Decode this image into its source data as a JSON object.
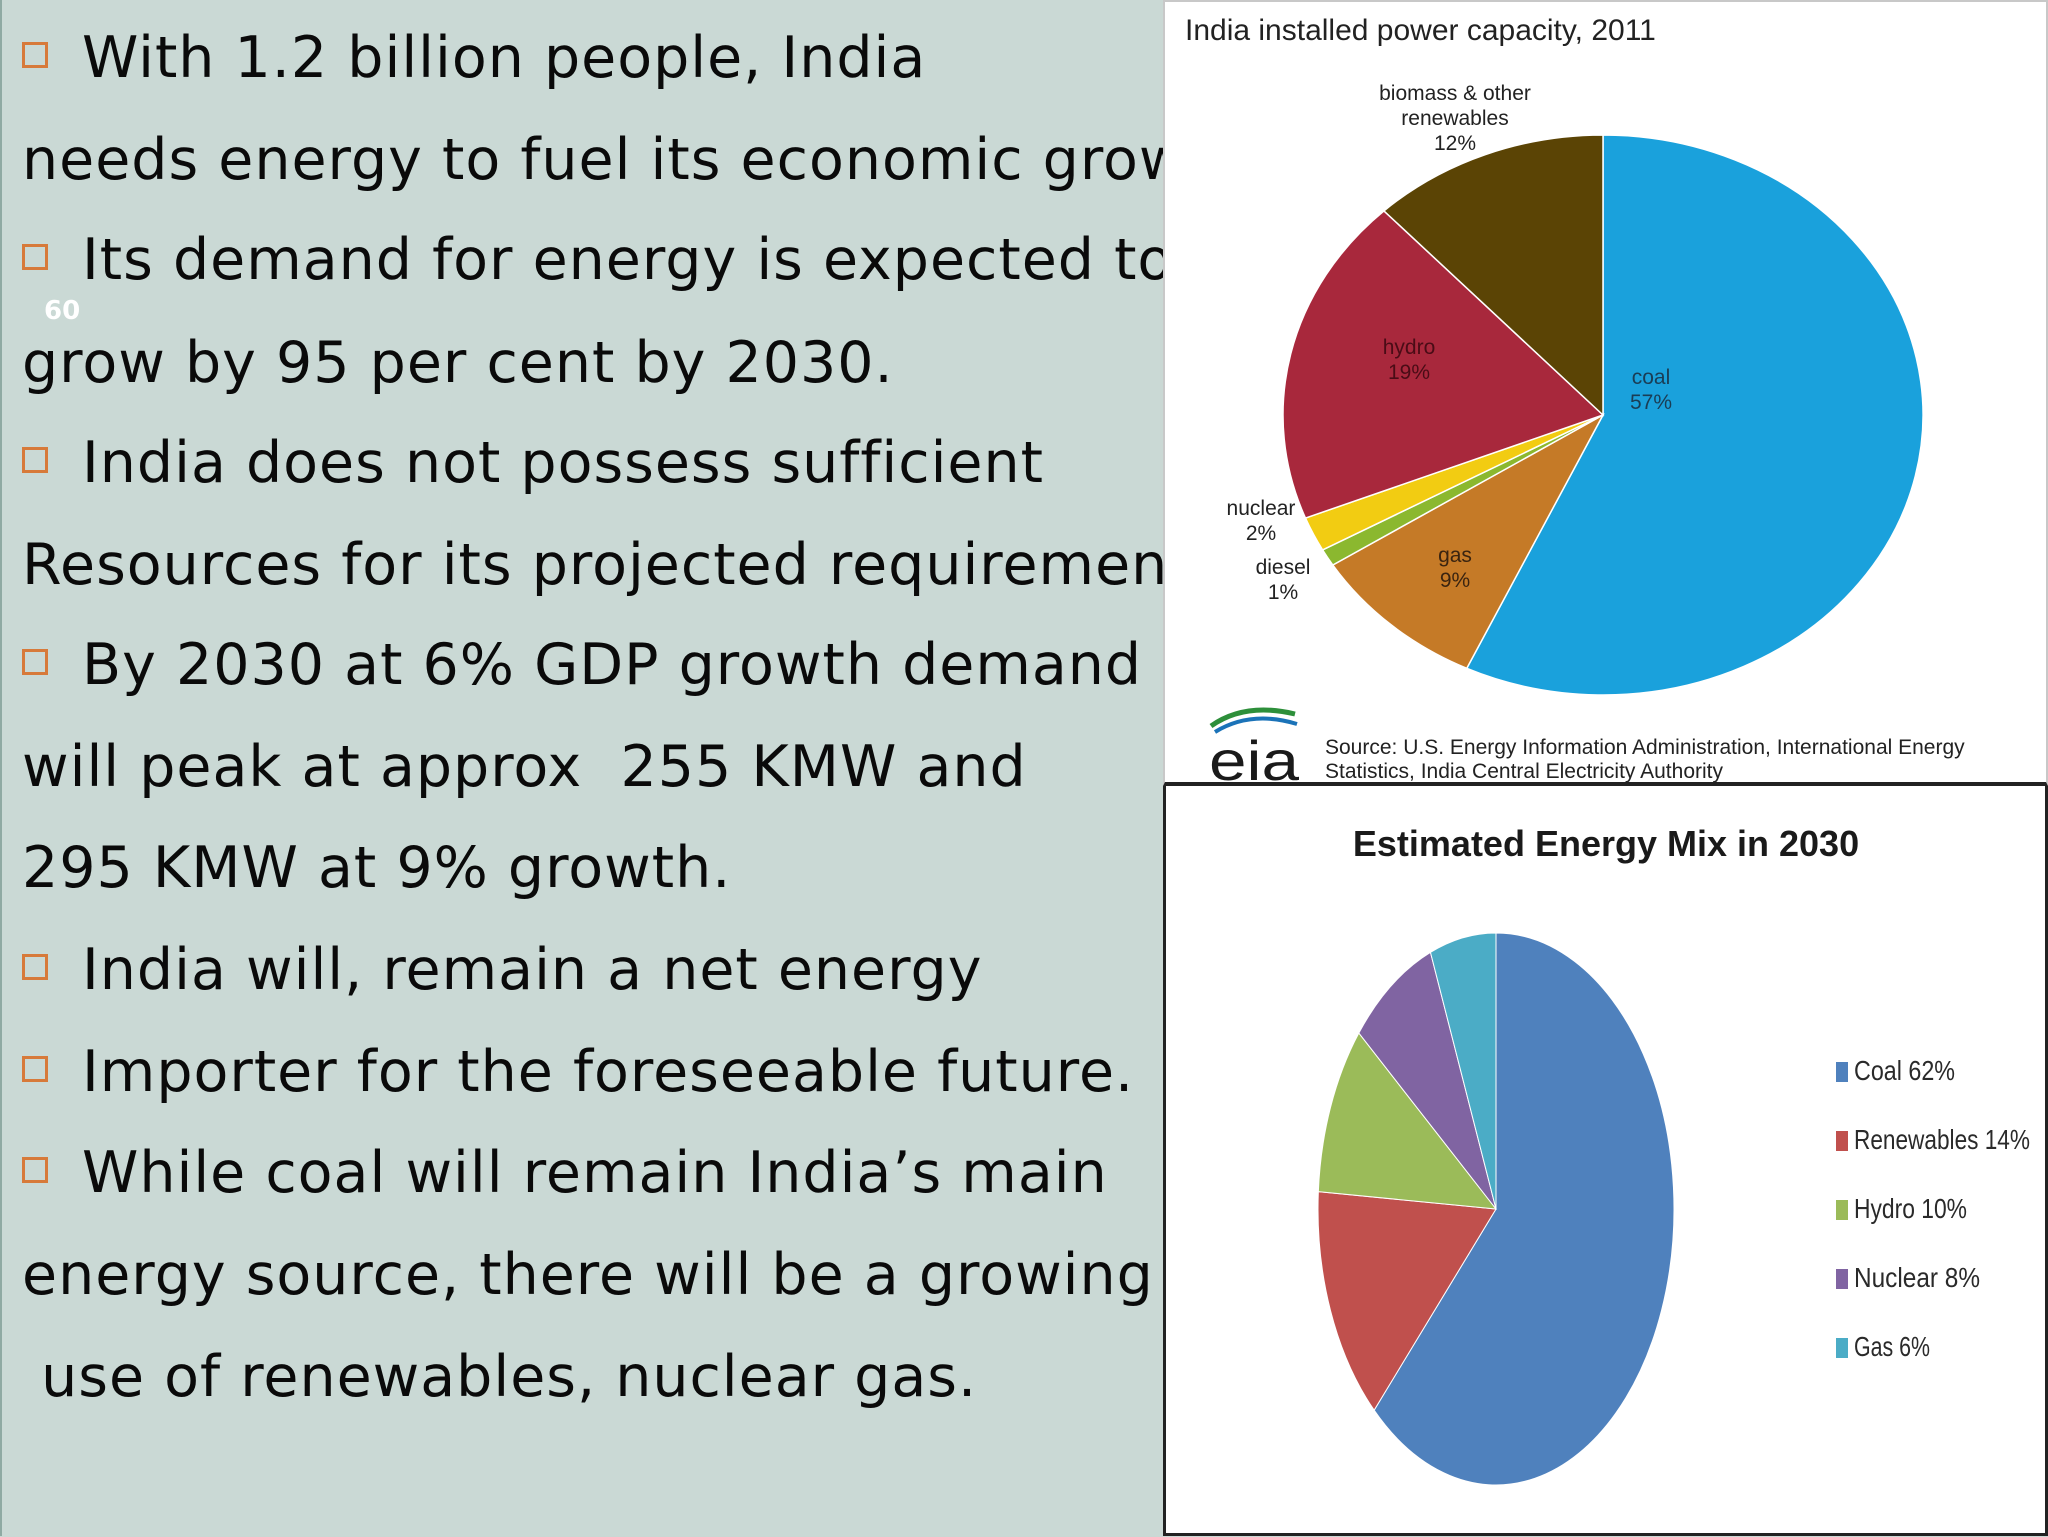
{
  "slide": {
    "number": "60",
    "lines": [
      {
        "bullet": true,
        "text": "With 1.2 billion people, India"
      },
      {
        "bullet": false,
        "text": "needs energy to fuel its economic growth."
      },
      {
        "bullet": true,
        "text": "Its demand for energy is expected to"
      },
      {
        "bullet": false,
        "text": "grow by 95 per cent by 2030."
      },
      {
        "bullet": true,
        "text": "India does not possess sufficient"
      },
      {
        "bullet": false,
        "text": "Resources for its projected requirement."
      },
      {
        "bullet": true,
        "text": "By 2030 at 6% GDP growth demand"
      },
      {
        "bullet": false,
        "text": "will peak at approx  255 KMW and"
      },
      {
        "bullet": false,
        "text": "295 KMW at 9% growth."
      },
      {
        "bullet": true,
        "text": "India will, remain a net energy"
      },
      {
        "bullet": true,
        "text": "Importer for the foreseeable future."
      },
      {
        "bullet": true,
        "text": "While coal will remain India’s main"
      },
      {
        "bullet": false,
        "text": "energy source, there will be a growing"
      },
      {
        "bullet": false,
        "text": " use of renewables, nuclear gas."
      }
    ]
  },
  "chart_data": [
    {
      "type": "pie",
      "title": "India installed power capacity, 2011",
      "slices": [
        {
          "label": "coal",
          "value": 57,
          "value_label": "57%",
          "color": "#1aa1dc"
        },
        {
          "label": "gas",
          "value": 9,
          "value_label": "9%",
          "color": "#c57a27"
        },
        {
          "label": "diesel",
          "value": 1,
          "value_label": "1%",
          "color": "#8bb82f"
        },
        {
          "label": "nuclear",
          "value": 2,
          "value_label": "2%",
          "color": "#f2cc12"
        },
        {
          "label": "hydro",
          "value": 19,
          "value_label": "19%",
          "color": "#a8283c"
        },
        {
          "label": "biomass & other renewables",
          "value": 12,
          "value_label": "12%",
          "color": "#5b4405"
        }
      ],
      "source_logo": "eia",
      "source": "Source: U.S. Energy Information Administration, International Energy Statistics, India Central Electricity Authority"
    },
    {
      "type": "pie",
      "title": "Estimated Energy Mix in 2030",
      "legend_position": "right",
      "slices": [
        {
          "label": "Coal 62%",
          "value": 62,
          "color": "#4f81bd"
        },
        {
          "label": "Renewables 14%",
          "value": 14,
          "color": "#c0504d"
        },
        {
          "label": "Hydro 10%",
          "value": 10,
          "color": "#9bbb59"
        },
        {
          "label": "Nuclear 8%",
          "value": 8,
          "color": "#8064a2"
        },
        {
          "label": "Gas 6%",
          "value": 6,
          "color": "#4bacc6"
        }
      ]
    }
  ]
}
